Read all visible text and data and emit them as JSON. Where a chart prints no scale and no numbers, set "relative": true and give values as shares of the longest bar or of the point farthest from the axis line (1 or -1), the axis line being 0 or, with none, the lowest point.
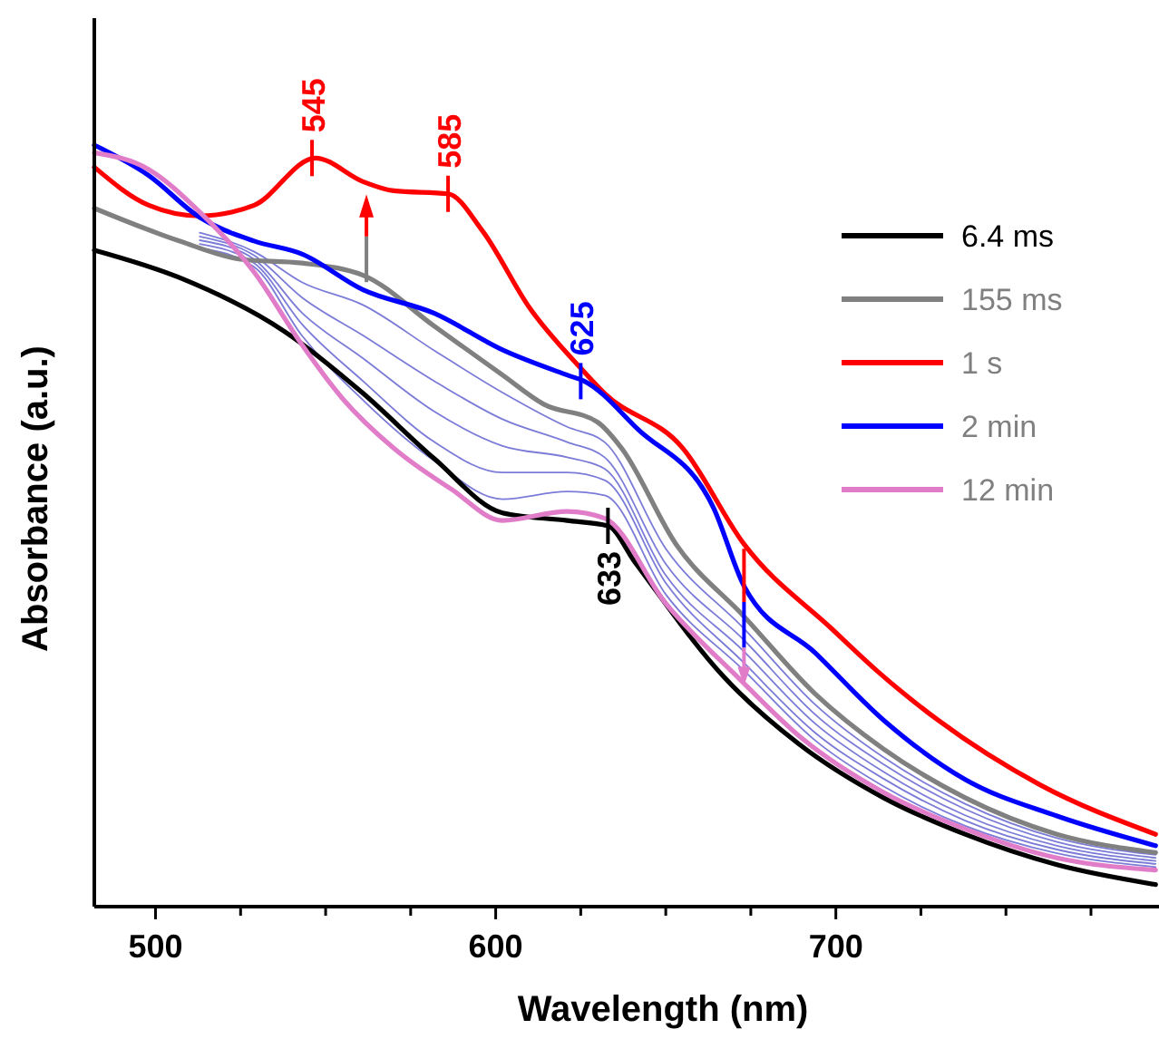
{
  "chart_data": {
    "type": "line",
    "relative": true,
    "xlabel": "Wavelength (nm)",
    "ylabel": "Absorbance (a.u.)",
    "xlim": [
      482,
      795
    ],
    "xticks": [
      500,
      {
        "value": 525,
        "label": null
      },
      {
        "value": 550,
        "label": null
      },
      {
        "value": 575,
        "label": null
      },
      600,
      {
        "value": 625,
        "label": null
      },
      {
        "value": 650,
        "label": null
      },
      {
        "value": 675,
        "label": null
      },
      700,
      {
        "value": 725,
        "label": null
      },
      {
        "value": 750,
        "label": null
      },
      {
        "value": 775,
        "label": null
      }
    ],
    "legend": "top right",
    "marker": "none",
    "line_style": "solid",
    "annotations": [
      {
        "text": "545",
        "x": 546,
        "y": 0.983
      },
      {
        "text": "585",
        "x": 586,
        "y": 0.936
      },
      {
        "text": "625",
        "x": 625,
        "y": 0.69
      },
      {
        "text": "633",
        "x": 633,
        "y": 0.5
      }
    ],
    "series": [
      {
        "name": null,
        "color": "#7b7bd8",
        "x": [
          513,
          529,
          543,
          561,
          582,
          602,
          621,
          632,
          650,
          673,
          694,
          714,
          738,
          765,
          794
        ],
        "values": [
          0.885,
          0.86,
          0.82,
          0.79,
          0.73,
          0.675,
          0.63,
          0.61,
          0.47,
          0.365,
          0.265,
          0.196,
          0.135,
          0.09,
          0.068
        ]
      },
      {
        "name": null,
        "color": "#7b7bd8",
        "x": [
          513,
          529,
          543,
          561,
          582,
          602,
          621,
          632,
          650,
          673,
          694,
          714,
          738,
          765,
          794
        ],
        "values": [
          0.88,
          0.855,
          0.8,
          0.75,
          0.69,
          0.64,
          0.61,
          0.59,
          0.45,
          0.35,
          0.252,
          0.187,
          0.128,
          0.085,
          0.064
        ]
      },
      {
        "name": null,
        "color": "#7b7bd8",
        "x": [
          513,
          529,
          543,
          561,
          582,
          602,
          621,
          632,
          650,
          673,
          694,
          714,
          738,
          765,
          794
        ],
        "values": [
          0.875,
          0.85,
          0.78,
          0.72,
          0.65,
          0.605,
          0.59,
          0.575,
          0.435,
          0.335,
          0.24,
          0.177,
          0.12,
          0.08,
          0.06
        ]
      },
      {
        "name": null,
        "color": "#7b7bd8",
        "x": [
          513,
          529,
          543,
          561,
          582,
          602,
          621,
          632,
          650,
          673,
          694,
          714,
          738,
          765,
          794
        ],
        "values": [
          0.87,
          0.845,
          0.765,
          0.69,
          0.61,
          0.57,
          0.57,
          0.56,
          0.425,
          0.32,
          0.228,
          0.168,
          0.113,
          0.075,
          0.056
        ]
      },
      {
        "name": null,
        "color": "#7b7bd8",
        "x": [
          513,
          529,
          543,
          561,
          582,
          602,
          621,
          632,
          650,
          673,
          694,
          714,
          738,
          765,
          794
        ],
        "values": [
          0.865,
          0.84,
          0.75,
          0.665,
          0.585,
          0.535,
          0.545,
          0.54,
          0.41,
          0.31,
          0.218,
          0.158,
          0.106,
          0.07,
          0.052
        ]
      },
      {
        "name": "6.4 ms",
        "color": "#000000",
        "x": [
          482,
          507,
          538,
          561,
          582,
          602,
          621,
          633,
          641,
          667,
          689,
          714,
          738,
          765,
          794
        ],
        "values": [
          0.862,
          0.826,
          0.755,
          0.674,
          0.588,
          0.517,
          0.507,
          0.5,
          0.452,
          0.302,
          0.214,
          0.143,
          0.095,
          0.055,
          0.029
        ]
      },
      {
        "name": "155 ms",
        "color": "#808080",
        "x": [
          482,
          507,
          525,
          543,
          561,
          582,
          602,
          614,
          630,
          637,
          653,
          673,
          694,
          714,
          738,
          765,
          794
        ],
        "values": [
          0.917,
          0.874,
          0.85,
          0.845,
          0.829,
          0.762,
          0.698,
          0.66,
          0.636,
          0.602,
          0.476,
          0.381,
          0.279,
          0.207,
          0.143,
          0.095,
          0.071
        ]
      },
      {
        "name": "1 s",
        "color": "#ff0000",
        "x": [
          482,
          498,
          513,
          529,
          547,
          561,
          570,
          586,
          596,
          610,
          625,
          632,
          655,
          673,
          699,
          712,
          730,
          760,
          794
        ],
        "values": [
          0.971,
          0.921,
          0.907,
          0.921,
          0.983,
          0.952,
          0.94,
          0.936,
          0.888,
          0.786,
          0.707,
          0.674,
          0.602,
          0.476,
          0.364,
          0.31,
          0.245,
          0.16,
          0.095
        ]
      },
      {
        "name": "2 min",
        "color": "#0000ff",
        "x": [
          482,
          498,
          513,
          529,
          543,
          561,
          582,
          602,
          621,
          626,
          642,
          664,
          673,
          694,
          714,
          738,
          765,
          794
        ],
        "values": [
          1,
          0.96,
          0.905,
          0.874,
          0.857,
          0.81,
          0.779,
          0.731,
          0.698,
          0.69,
          0.626,
          0.524,
          0.421,
          0.333,
          0.245,
          0.167,
          0.119,
          0.08
        ]
      },
      {
        "name": "12 min",
        "color": "#e07cc8",
        "x": [
          482,
          498,
          513,
          529,
          543,
          555,
          570,
          587,
          602,
          621,
          632,
          650,
          671,
          690,
          714,
          738,
          765,
          794
        ],
        "values": [
          0.99,
          0.968,
          0.912,
          0.833,
          0.738,
          0.667,
          0.602,
          0.548,
          0.507,
          0.519,
          0.51,
          0.398,
          0.302,
          0.221,
          0.15,
          0.102,
          0.064,
          0.048
        ]
      }
    ]
  }
}
